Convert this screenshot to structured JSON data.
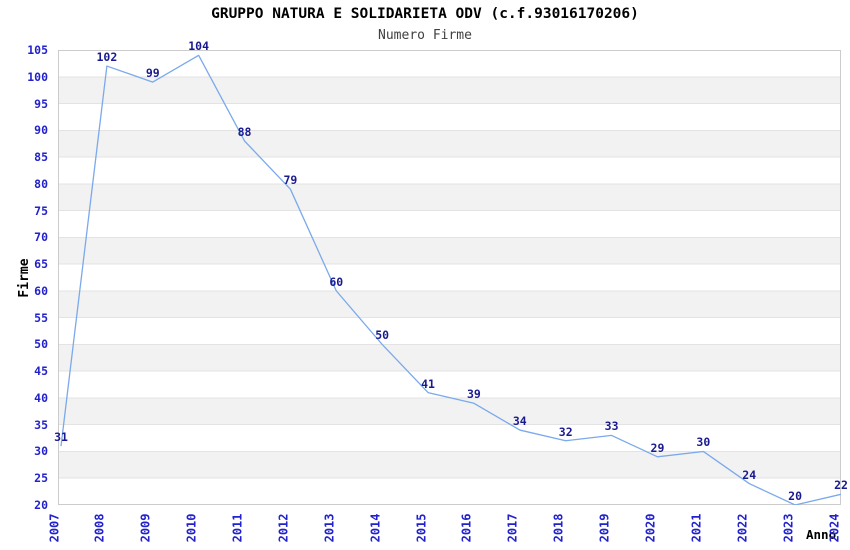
{
  "chart_data": {
    "type": "line",
    "title": "GRUPPO NATURA E SOLIDARIETA ODV (c.f.93016170206)",
    "subtitle": "Numero Firme",
    "xlabel": "Anno",
    "ylabel": "Firme",
    "x": [
      "2007",
      "2008",
      "2009",
      "2010",
      "2011",
      "2012",
      "2013",
      "2014",
      "2015",
      "2016",
      "2017",
      "2018",
      "2019",
      "2020",
      "2021",
      "2022",
      "2023",
      "2024"
    ],
    "values": [
      31,
      102,
      99,
      104,
      88,
      79,
      60,
      50,
      41,
      39,
      34,
      32,
      33,
      29,
      30,
      24,
      20,
      22
    ],
    "ylim": [
      20,
      105
    ],
    "ytick_step": 5,
    "grid": "horizontal-only",
    "legend": "none",
    "band_fill_ranges": "alternating 5-unit bands starting gray at 25-30 up to 95-100",
    "colors": {
      "line": "#7aa9ec",
      "tick_label": "#2222cc",
      "data_label": "#1a1a90",
      "band": "#f2f2f2",
      "gridline": "#e3e3e3",
      "plot_border": "#cccccc",
      "title": "#000000",
      "subtitle": "#404040",
      "background": "#ffffff"
    }
  }
}
